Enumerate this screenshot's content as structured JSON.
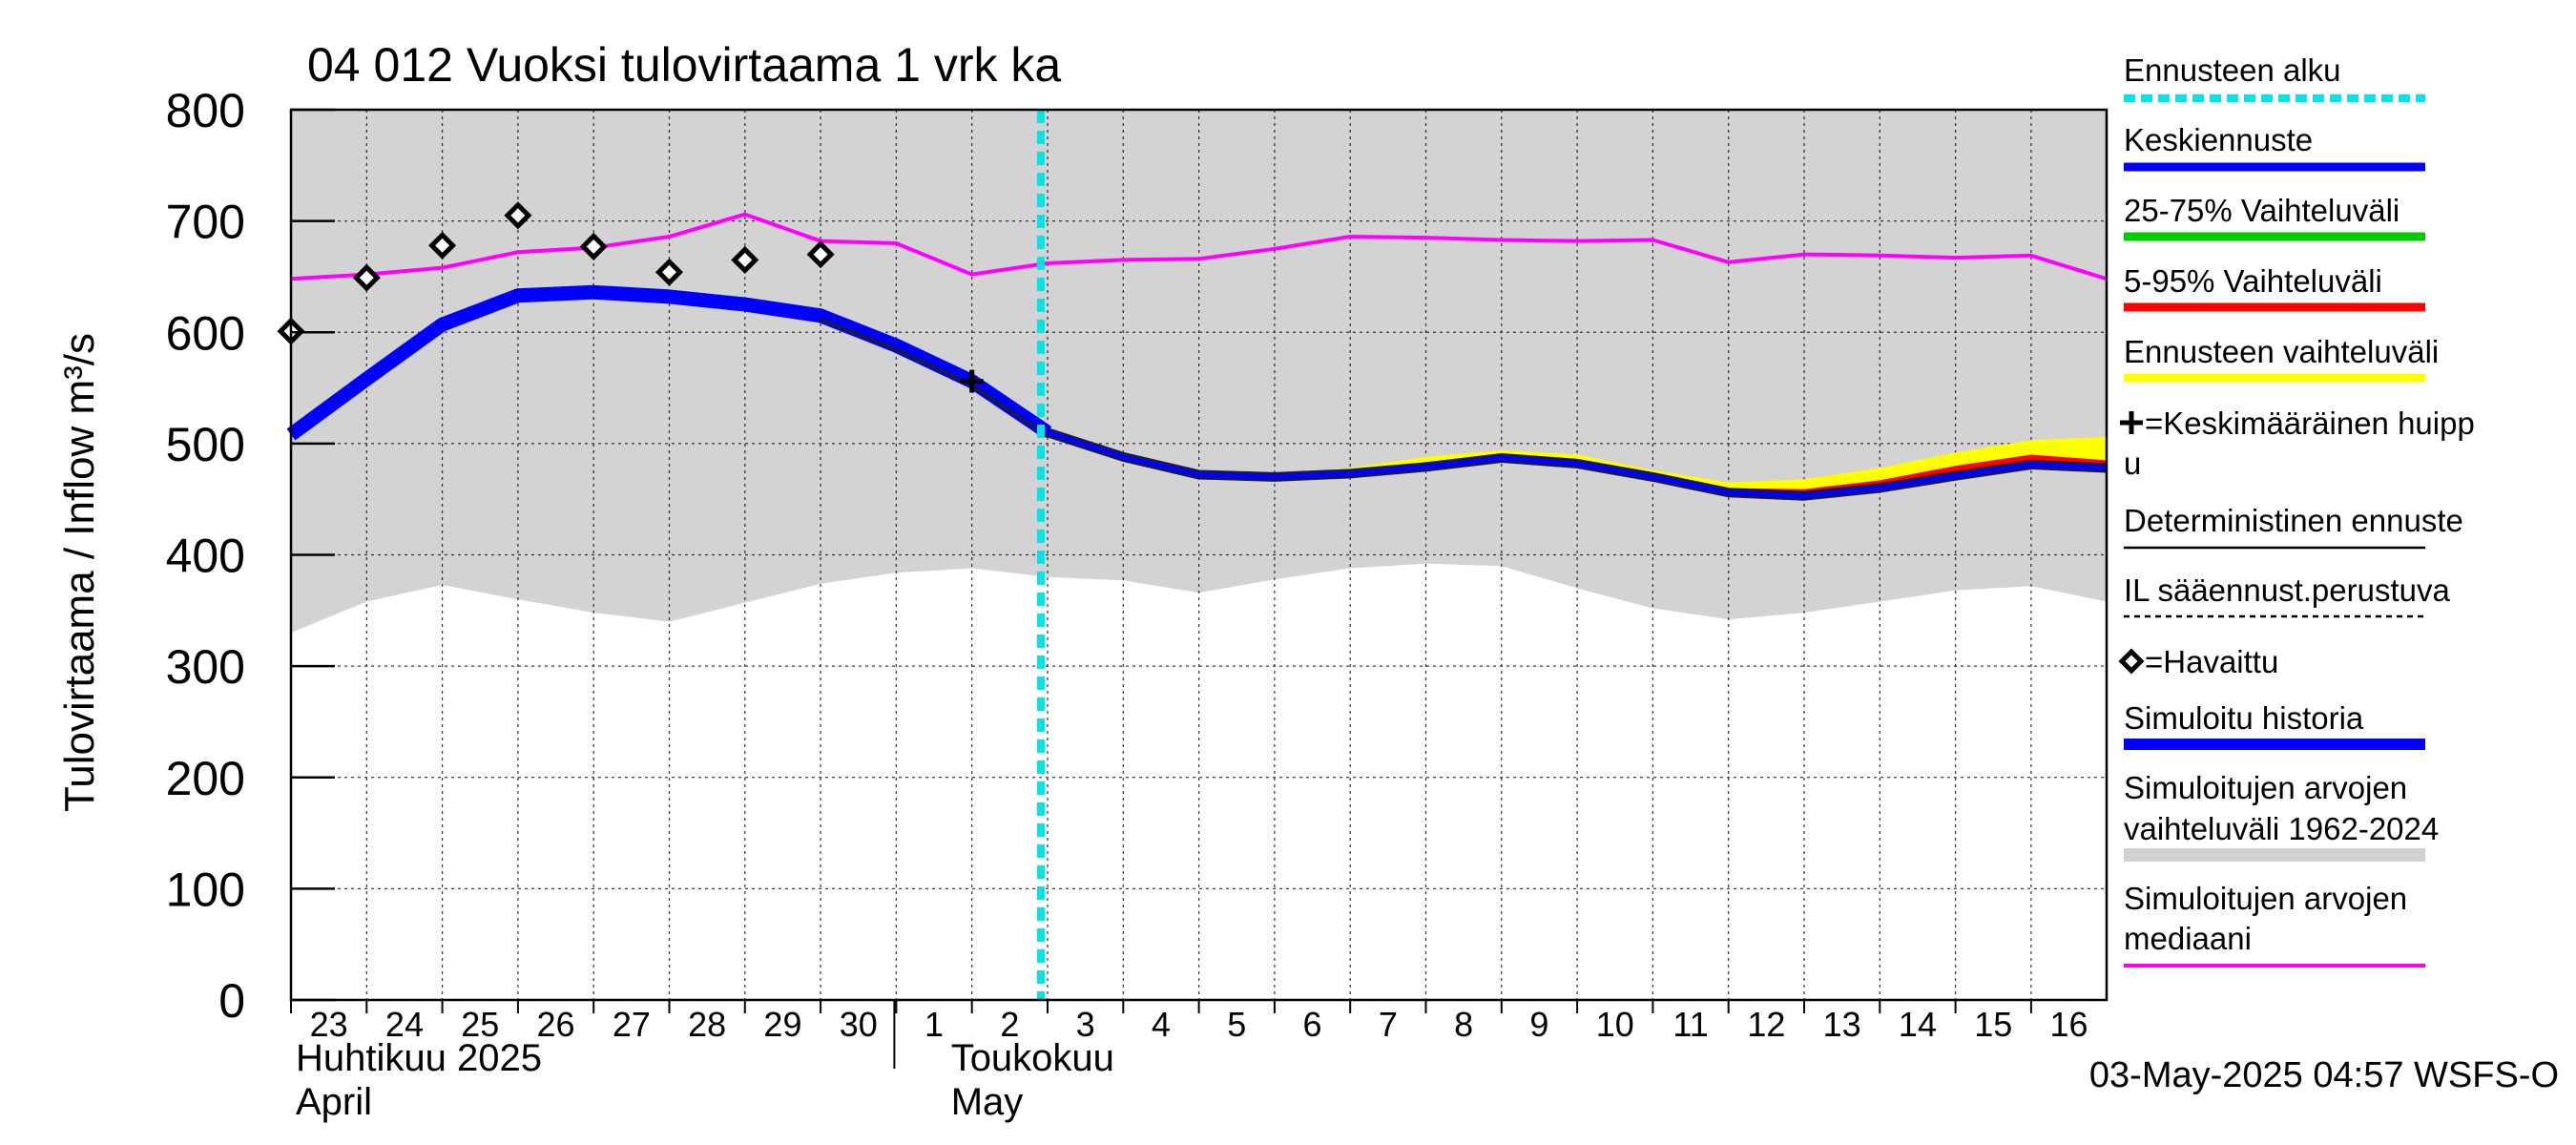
{
  "chart_data": {
    "type": "line",
    "title": "04 012 Vuoksi tulovirtaama 1 vrk ka",
    "ylabel": "Tulovirtaama / Inflow    m³/s",
    "ylim": [
      0,
      800
    ],
    "yticks": [
      0,
      100,
      200,
      300,
      400,
      500,
      600,
      700,
      800
    ],
    "grid": true,
    "legend_position": "right",
    "x_day_labels": [
      "23",
      "24",
      "25",
      "26",
      "27",
      "28",
      "29",
      "30",
      "1",
      "2",
      "3",
      "4",
      "5",
      "6",
      "7",
      "8",
      "9",
      "10",
      "11",
      "12",
      "13",
      "14",
      "15",
      "16"
    ],
    "month_labels": [
      {
        "fi": "Huhtikuu  2025",
        "en": "April"
      },
      {
        "fi": "Toukokuu",
        "en": "May"
      }
    ],
    "forecast_start_day": 10,
    "simulated_range_upper": [
      800,
      800,
      800,
      800,
      800,
      800,
      800,
      800,
      800,
      800,
      800,
      800,
      800,
      800,
      800,
      800,
      800,
      800,
      800,
      800,
      800,
      800,
      800,
      800,
      800
    ],
    "simulated_range_lower": [
      330,
      358,
      373,
      360,
      348,
      340,
      357,
      374,
      384,
      388,
      380,
      377,
      366,
      378,
      388,
      392,
      390,
      370,
      352,
      342,
      348,
      358,
      368,
      372,
      358
    ],
    "simulated_median": [
      648,
      652,
      658,
      672,
      676,
      686,
      706,
      682,
      680,
      652,
      662,
      665,
      666,
      675,
      686,
      685,
      683,
      682,
      683,
      663,
      670,
      669,
      667,
      669,
      648
    ],
    "simulated_history": [
      508,
      558,
      607,
      633,
      636,
      632,
      625,
      615,
      588,
      556,
      510
    ],
    "mean_forecast": [
      510,
      488,
      472,
      470,
      473,
      479,
      487,
      482,
      470,
      456,
      453,
      460,
      471,
      481,
      478
    ],
    "range_5_95_upper": [
      511,
      489,
      473,
      471,
      475,
      483,
      491,
      486,
      472,
      460,
      459,
      467,
      480,
      490,
      485
    ],
    "range_5_95_lower": [
      509,
      487,
      471,
      469,
      472,
      478,
      486,
      481,
      469,
      454,
      451,
      458,
      469,
      478,
      476
    ],
    "forecast_range_upper": [
      512,
      490,
      474,
      472,
      478,
      488,
      494,
      490,
      476,
      465,
      468,
      478,
      492,
      503,
      506
    ],
    "forecast_range_lower": [
      508,
      486,
      470,
      468,
      471,
      477,
      485,
      480,
      468,
      453,
      450,
      457,
      468,
      477,
      474
    ],
    "mean_peak": {
      "x": 9,
      "y": 556
    },
    "observed": [
      {
        "x": 0,
        "y": 601
      },
      {
        "x": 1,
        "y": 649
      },
      {
        "x": 2,
        "y": 678
      },
      {
        "x": 3,
        "y": 705
      },
      {
        "x": 4,
        "y": 677
      },
      {
        "x": 5,
        "y": 654
      },
      {
        "x": 6,
        "y": 665
      },
      {
        "x": 7,
        "y": 670
      }
    ],
    "colors": {
      "simulated_range": "#d3d3d3",
      "median": "#ff00ff",
      "mean_forecast": "#0000ff",
      "range_25_75": "#00cc00",
      "range_5_95": "#ff0000",
      "forecast_range": "#ffff00",
      "forecast_start": "#00e5e5",
      "simulated_history": "#0000ff",
      "dark_outline": "#1a1a4a"
    }
  },
  "legend": [
    {
      "label": "Ennusteen alku",
      "style": "dashed-cyan"
    },
    {
      "label": "Keskiennuste",
      "style": "blue"
    },
    {
      "label": "25-75% Vaihteluväli",
      "style": "green"
    },
    {
      "label": "5-95% Vaihteluväli",
      "style": "red"
    },
    {
      "label": "Ennusteen vaihteluväli",
      "style": "yellow"
    },
    {
      "label": "=Keskimääräinen huipp",
      "label2": "u",
      "style": "cross"
    },
    {
      "label": "Deterministinen ennuste",
      "style": "black-thin"
    },
    {
      "label": "IL sääennust.perustuva",
      "style": "black-dashed"
    },
    {
      "label": "=Havaittu",
      "style": "diamond"
    },
    {
      "label": "Simuloitu historia",
      "style": "blue-thick"
    },
    {
      "label": "Simuloitujen arvojen",
      "label2": "vaihteluväli 1962-2024",
      "style": "gray"
    },
    {
      "label": "Simuloitujen arvojen",
      "label2": "mediaani",
      "style": "magenta"
    }
  ],
  "footer": "03-May-2025 04:57 WSFS-O"
}
